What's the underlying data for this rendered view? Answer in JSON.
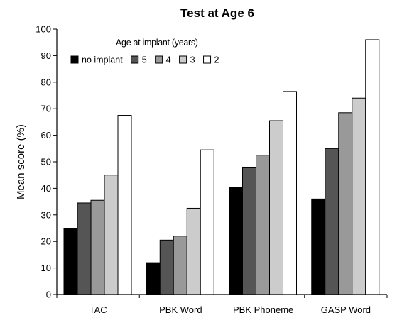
{
  "chart_data": {
    "type": "bar",
    "title": "Test at Age 6",
    "ylabel": "Mean score (%)",
    "xlabel": "",
    "ylim": [
      0,
      100
    ],
    "yticks": [
      0,
      10,
      20,
      30,
      40,
      50,
      60,
      70,
      80,
      90,
      100
    ],
    "categories": [
      "TAC",
      "PBK  Word",
      "PBK Phoneme",
      "GASP Word"
    ],
    "legend_title": "Age at implant (years)",
    "legend_position": "top-left",
    "grid": false,
    "series": [
      {
        "name": "no implant",
        "color": "#000000",
        "values": [
          25,
          12,
          40.5,
          36
        ]
      },
      {
        "name": "5",
        "color": "#555555",
        "values": [
          34.5,
          20.5,
          48,
          55
        ]
      },
      {
        "name": "4",
        "color": "#999999",
        "values": [
          35.5,
          22,
          52.5,
          68.5
        ]
      },
      {
        "name": "3",
        "color": "#cccccc",
        "values": [
          45,
          32.5,
          65.5,
          74
        ]
      },
      {
        "name": "2",
        "color": "#ffffff",
        "values": [
          67.5,
          54.5,
          76.5,
          96
        ]
      }
    ]
  }
}
